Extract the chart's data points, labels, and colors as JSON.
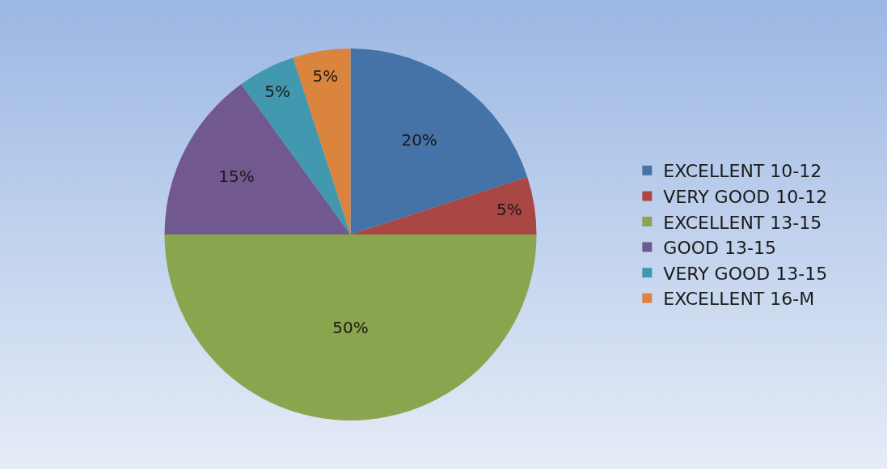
{
  "chart_data": {
    "type": "pie",
    "categories": [
      "EXCELLENT 10-12",
      "VERY GOOD 10-12",
      "EXCELLENT 13-15",
      "GOOD 13-15",
      "VERY GOOD 13-15",
      "EXCELLENT 16-M"
    ],
    "values": [
      20,
      5,
      50,
      15,
      5,
      5
    ],
    "value_labels": [
      "20%",
      "5%",
      "50%",
      "15%",
      "5%",
      "5%"
    ],
    "colors": [
      "#4572a7",
      "#aa4643",
      "#89a54e",
      "#71588f",
      "#4198af",
      "#db843d"
    ],
    "legend": "right"
  }
}
